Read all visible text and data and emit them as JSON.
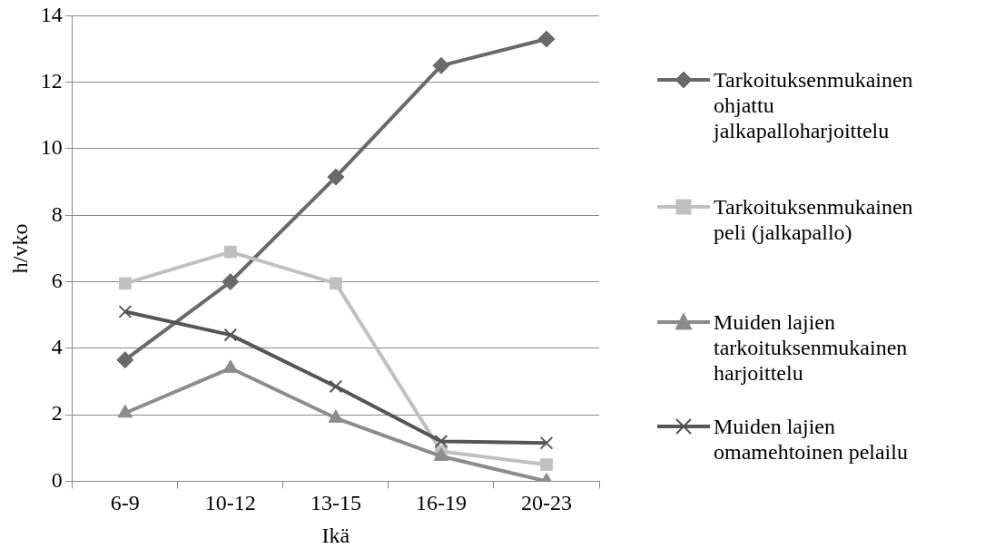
{
  "chart_data": {
    "type": "line",
    "xlabel": "Ikä",
    "ylabel": "h/vko",
    "categories": [
      "6-9",
      "10-12",
      "13-15",
      "16-19",
      "20-23"
    ],
    "ylim": [
      0,
      14
    ],
    "yticks": [
      0,
      2,
      4,
      6,
      8,
      10,
      12,
      14
    ],
    "grid": "y",
    "legend": "right",
    "series": [
      {
        "name": "Tarkoituksenmukainen ohjattu jalkapalloharjoittelu",
        "color": "#696969",
        "marker": "diamond",
        "values": [
          3.65,
          6.0,
          9.15,
          12.5,
          13.3
        ]
      },
      {
        "name": "Tarkoituksenmukainen peli (jalkapallo)",
        "color": "#c0c0c0",
        "marker": "square",
        "values": [
          5.95,
          6.9,
          5.95,
          0.9,
          0.5
        ]
      },
      {
        "name": "Muiden lajien tarkoituksenmukainen harjoittelu",
        "color": "#8c8c8c",
        "marker": "triangle",
        "values": [
          2.05,
          3.4,
          1.9,
          0.75,
          0
        ]
      },
      {
        "name": "Muiden lajien omamehtoinen pelailu",
        "color": "#555555",
        "marker": "cross",
        "values": [
          5.1,
          4.4,
          2.85,
          1.2,
          1.15
        ]
      }
    ]
  }
}
